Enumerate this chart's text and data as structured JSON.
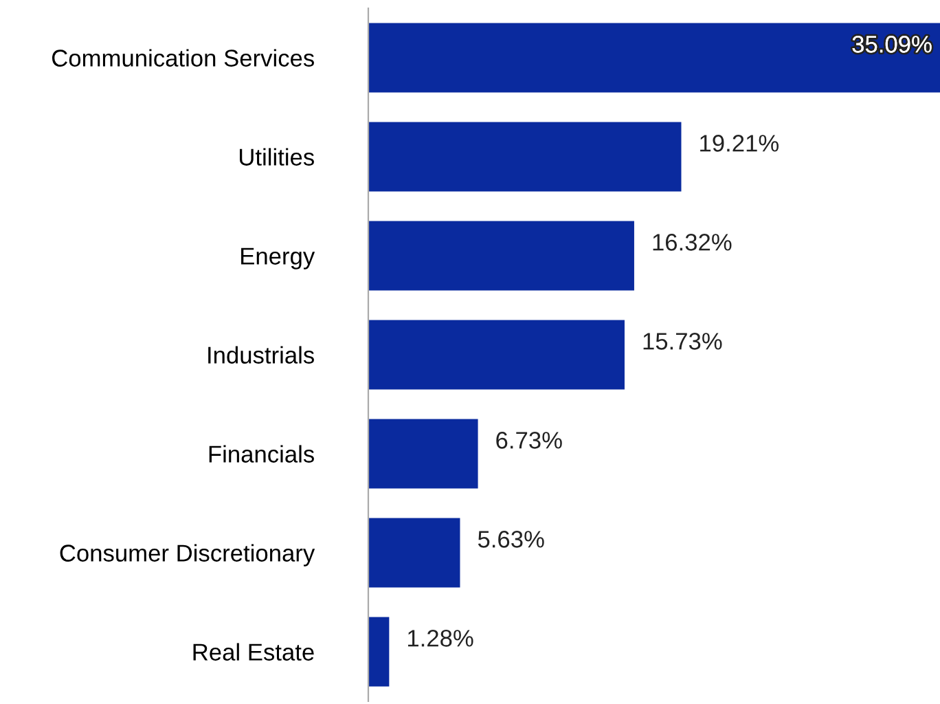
{
  "chart_data": {
    "type": "bar",
    "orientation": "horizontal",
    "categories": [
      "Communication Services",
      "Utilities",
      "Energy",
      "Industrials",
      "Financials",
      "Consumer Discretionary",
      "Real Estate"
    ],
    "values": [
      35.09,
      19.21,
      16.32,
      15.73,
      6.73,
      5.63,
      1.28
    ],
    "value_labels": [
      "35.09%",
      "19.21%",
      "16.32%",
      "15.73%",
      "6.73%",
      "5.63%",
      "1.28%"
    ],
    "color": "#0a2a9e",
    "grid": false,
    "legend": false
  }
}
